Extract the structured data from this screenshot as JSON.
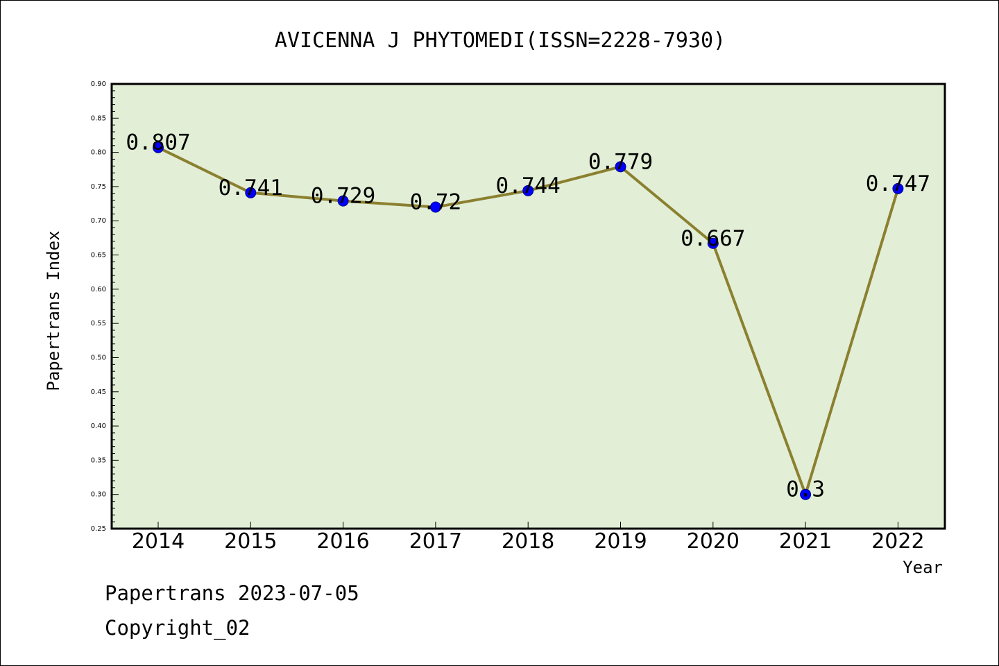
{
  "chart_data": {
    "type": "line",
    "title": "AVICENNA J PHYTOMEDI(ISSN=2228-7930)",
    "xlabel": "Year",
    "ylabel": "Papertrans Index",
    "categories": [
      "2014",
      "2015",
      "2016",
      "2017",
      "2018",
      "2019",
      "2020",
      "2021",
      "2022"
    ],
    "values": [
      0.807,
      0.741,
      0.729,
      0.72,
      0.744,
      0.779,
      0.667,
      0.3,
      0.747
    ],
    "data_labels": [
      "0.807",
      "0.741",
      "0.729",
      "0.72",
      "0.744",
      "0.779",
      "0.667",
      "0.3",
      "0.747"
    ],
    "ylim": [
      0.25,
      0.9
    ],
    "yticks": [
      "0.25",
      "0.30",
      "0.35",
      "0.40",
      "0.45",
      "0.50",
      "0.55",
      "0.60",
      "0.65",
      "0.70",
      "0.75",
      "0.80",
      "0.85",
      "0.90"
    ],
    "grid": false,
    "legend": "none",
    "colors": {
      "plot_background": "#e2efd6",
      "line": "#8b8030",
      "marker": "#0000ff"
    }
  },
  "footer": {
    "line1": "Papertrans 2023-07-05",
    "line2": "Copyright_02"
  }
}
